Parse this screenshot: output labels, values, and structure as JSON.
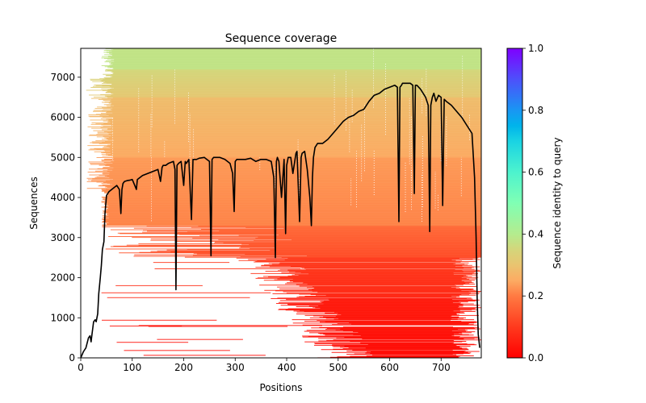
{
  "chart_data": {
    "type": "heatmap",
    "title": "Sequence coverage",
    "xlabel": "Positions",
    "ylabel": "Sequences",
    "xlim": [
      0,
      778
    ],
    "ylim": [
      0,
      7720
    ],
    "xticks": [
      0,
      100,
      200,
      300,
      400,
      500,
      600,
      700
    ],
    "yticks": [
      0,
      1000,
      2000,
      3000,
      4000,
      5000,
      6000,
      7000
    ],
    "grid": false,
    "colorbar": {
      "label": "Sequence identity to query",
      "colormap": "rainbow_r",
      "range": [
        0,
        1
      ],
      "ticks": [
        "0.0",
        "0.2",
        "0.4",
        "0.6",
        "0.8",
        "1.0"
      ]
    },
    "identity_bands": [
      {
        "seq_from": 0,
        "seq_to": 1500,
        "identity": 0.02
      },
      {
        "seq_from": 1500,
        "seq_to": 2500,
        "identity": 0.07
      },
      {
        "seq_from": 2500,
        "seq_to": 3300,
        "identity": 0.13
      },
      {
        "seq_from": 3300,
        "seq_to": 5000,
        "identity": 0.21
      },
      {
        "seq_from": 5000,
        "seq_to": 6500,
        "identity": 0.25
      },
      {
        "seq_from": 6500,
        "seq_to": 7200,
        "identity": 0.31
      },
      {
        "seq_from": 7200,
        "seq_to": 7720,
        "identity": 0.38
      }
    ],
    "coverage_line": {
      "name": "coverage",
      "color": "#000000",
      "x": [
        0,
        5,
        10,
        15,
        18,
        20,
        22,
        25,
        28,
        30,
        33,
        35,
        38,
        40,
        42,
        45,
        47,
        50,
        55,
        60,
        65,
        70,
        75,
        78,
        80,
        82,
        85,
        90,
        95,
        100,
        105,
        108,
        110,
        115,
        120,
        130,
        140,
        150,
        155,
        158,
        160,
        165,
        170,
        180,
        183,
        185,
        187,
        190,
        195,
        200,
        203,
        205,
        210,
        215,
        218,
        220,
        225,
        230,
        240,
        250,
        253,
        255,
        258,
        262,
        270,
        280,
        290,
        295,
        298,
        300,
        303,
        306,
        310,
        320,
        330,
        340,
        350,
        360,
        370,
        375,
        378,
        380,
        382,
        385,
        390,
        395,
        398,
        400,
        403,
        408,
        412,
        418,
        420,
        425,
        428,
        430,
        435,
        440,
        445,
        448,
        450,
        452,
        455,
        460,
        470,
        480,
        490,
        500,
        510,
        520,
        530,
        540,
        550,
        560,
        570,
        580,
        590,
        600,
        610,
        615,
        618,
        620,
        623,
        625,
        630,
        640,
        645,
        648,
        650,
        653,
        660,
        670,
        675,
        678,
        680,
        683,
        686,
        690,
        695,
        700,
        703,
        706,
        710,
        720,
        730,
        740,
        750,
        755,
        760,
        765,
        768,
        770,
        772,
        775,
        778
      ],
      "y": [
        0,
        150,
        250,
        500,
        550,
        400,
        600,
        900,
        950,
        900,
        1100,
        1600,
        2000,
        2300,
        2700,
        2900,
        3600,
        4050,
        4150,
        4200,
        4250,
        4300,
        4200,
        3600,
        4200,
        4350,
        4400,
        4420,
        4430,
        4450,
        4300,
        4200,
        4450,
        4500,
        4550,
        4600,
        4650,
        4700,
        4400,
        4750,
        4800,
        4800,
        4850,
        4900,
        4700,
        1700,
        4800,
        4850,
        4900,
        4300,
        4900,
        4850,
        4950,
        3450,
        4950,
        4950,
        4950,
        4980,
        5000,
        4900,
        2550,
        4950,
        5000,
        5000,
        5000,
        4950,
        4850,
        4600,
        3650,
        4900,
        4950,
        4950,
        4950,
        4950,
        4980,
        4900,
        4950,
        4950,
        4900,
        4500,
        2500,
        4900,
        5000,
        4900,
        4000,
        4950,
        3100,
        4800,
        5000,
        5000,
        4600,
        5100,
        5150,
        3400,
        5000,
        5100,
        5150,
        4700,
        4000,
        3300,
        4500,
        5000,
        5250,
        5350,
        5350,
        5450,
        5600,
        5750,
        5900,
        6000,
        6050,
        6150,
        6200,
        6400,
        6550,
        6600,
        6700,
        6750,
        6800,
        6750,
        3400,
        6750,
        6800,
        6850,
        6850,
        6850,
        6800,
        4100,
        6800,
        6800,
        6700,
        6500,
        6300,
        3150,
        6300,
        6500,
        6600,
        6400,
        6550,
        6500,
        3800,
        6450,
        6400,
        6300,
        6150,
        6000,
        5800,
        5700,
        5600,
        4500,
        3000,
        1500,
        600,
        250
      ]
    }
  }
}
